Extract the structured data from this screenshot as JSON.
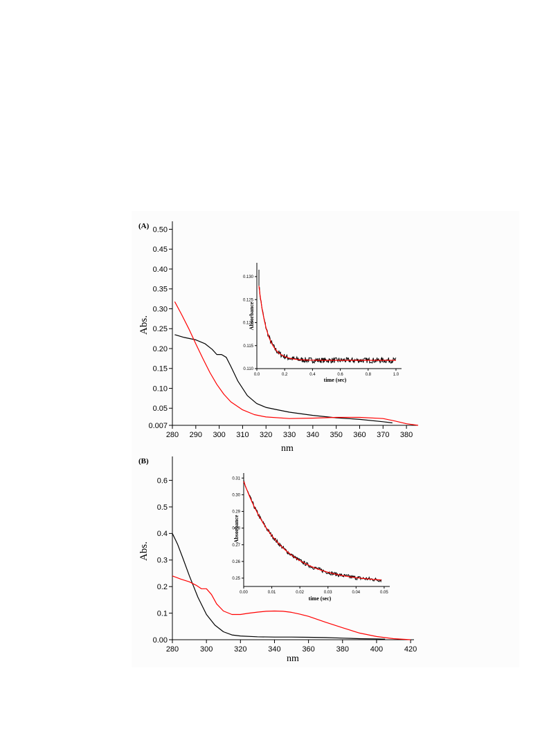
{
  "colors": {
    "black_series": "#000000",
    "red_series": "#ff0000",
    "panel_bg": "#fcfcfc",
    "axis": "#000000"
  },
  "chart_data": [
    {
      "id": "A-main",
      "panel_label": "(A)",
      "type": "line",
      "xlabel": "nm",
      "ylabel": "Abs.",
      "xlim": [
        280,
        385
      ],
      "ylim": [
        0.007,
        0.52
      ],
      "xticks": [
        280,
        290,
        300,
        310,
        320,
        330,
        340,
        350,
        360,
        370,
        380
      ],
      "yticks": [
        0.007,
        0.05,
        0.1,
        0.15,
        0.2,
        0.25,
        0.3,
        0.35,
        0.4,
        0.45,
        0.5
      ],
      "ytick_labels": [
        "0.007",
        "0.05",
        "0.10",
        "0.15",
        "0.20",
        "0.25",
        "0.30",
        "0.35",
        "0.40",
        "0.45",
        "0.50"
      ],
      "series": [
        {
          "color": "#000000",
          "x": [
            281,
            285,
            290,
            294,
            297,
            299,
            301,
            303,
            305,
            308,
            312,
            316,
            320,
            325,
            330,
            340,
            350,
            360,
            370,
            374
          ],
          "y": [
            0.235,
            0.228,
            0.222,
            0.212,
            0.198,
            0.185,
            0.185,
            0.178,
            0.155,
            0.118,
            0.082,
            0.062,
            0.052,
            0.046,
            0.04,
            0.032,
            0.026,
            0.022,
            0.016,
            0.013
          ]
        },
        {
          "color": "#ff0000",
          "x": [
            281,
            284,
            287,
            290,
            293,
            296,
            299,
            302,
            305,
            310,
            315,
            320,
            330,
            340,
            350,
            360,
            370,
            375,
            380,
            385
          ],
          "y": [
            0.318,
            0.285,
            0.25,
            0.212,
            0.175,
            0.14,
            0.11,
            0.085,
            0.066,
            0.046,
            0.034,
            0.028,
            0.024,
            0.025,
            0.027,
            0.027,
            0.024,
            0.018,
            0.011,
            0.007
          ]
        }
      ]
    },
    {
      "id": "A-inset",
      "type": "line",
      "xlabel": "time (sec)",
      "ylabel": "Absorbance",
      "xlim": [
        0,
        1.04
      ],
      "ylim": [
        0.11,
        0.133
      ],
      "xticks": [
        0.0,
        0.2,
        0.4,
        0.6,
        0.8,
        1.0
      ],
      "xtick_labels": [
        "0.0",
        "0.2",
        "0.4",
        "0.6",
        "0.8",
        "1.0"
      ],
      "yticks": [
        0.11,
        0.115,
        0.12,
        0.125,
        0.13
      ],
      "ytick_labels": [
        "0.110",
        "0.115",
        "0.120",
        "0.125",
        "0.130"
      ],
      "decay": {
        "x_start": 0.015,
        "x_end": 1.0,
        "y_start": 0.128,
        "y_plateau": 0.1118,
        "tau": 0.062,
        "noise": 0.0006
      },
      "series": [
        {
          "color": "#000000",
          "kind": "data"
        },
        {
          "color": "#ff0000",
          "kind": "fit"
        }
      ]
    },
    {
      "id": "B-main",
      "panel_label": "(B)",
      "type": "line",
      "xlabel": "nm",
      "ylabel": "Abs.",
      "xlim": [
        280,
        422
      ],
      "ylim": [
        0,
        0.69
      ],
      "xticks": [
        280,
        300,
        320,
        340,
        360,
        380,
        400,
        420
      ],
      "yticks": [
        0.0,
        0.1,
        0.2,
        0.3,
        0.4,
        0.5,
        0.6
      ],
      "ytick_labels": [
        "0.00",
        "0.1",
        "0.2",
        "0.3",
        "0.4",
        "0.5",
        "0.6"
      ],
      "series": [
        {
          "color": "#000000",
          "x": [
            280,
            283,
            286,
            290,
            295,
            300,
            305,
            310,
            315,
            320,
            330,
            340,
            350,
            360,
            370,
            380,
            390,
            400,
            405
          ],
          "y": [
            0.4,
            0.36,
            0.31,
            0.24,
            0.16,
            0.095,
            0.055,
            0.03,
            0.018,
            0.014,
            0.011,
            0.01,
            0.01,
            0.009,
            0.008,
            0.006,
            0.004,
            0.003,
            0.002
          ]
        },
        {
          "color": "#ff0000",
          "x": [
            280,
            285,
            290,
            294,
            297,
            300,
            303,
            306,
            310,
            315,
            320,
            325,
            330,
            335,
            340,
            345,
            350,
            355,
            360,
            370,
            380,
            390,
            400,
            410,
            420
          ],
          "y": [
            0.24,
            0.228,
            0.218,
            0.205,
            0.192,
            0.192,
            0.17,
            0.135,
            0.108,
            0.095,
            0.095,
            0.1,
            0.104,
            0.107,
            0.108,
            0.107,
            0.103,
            0.096,
            0.088,
            0.066,
            0.045,
            0.025,
            0.012,
            0.004,
            0.0
          ]
        }
      ]
    },
    {
      "id": "B-inset",
      "type": "line",
      "xlabel": "time (sec)",
      "ylabel": "Absorbance",
      "xlim": [
        0,
        0.052
      ],
      "ylim": [
        0.245,
        0.313
      ],
      "xticks": [
        0.0,
        0.01,
        0.02,
        0.03,
        0.04,
        0.05
      ],
      "xtick_labels": [
        "0.00",
        "0.01",
        "0.02",
        "0.03",
        "0.04",
        "0.05"
      ],
      "yticks": [
        0.25,
        0.26,
        0.27,
        0.28,
        0.29,
        0.3,
        0.31
      ],
      "ytick_labels": [
        "0.25",
        "0.26",
        "0.27",
        "0.28",
        "0.29",
        "0.30",
        "0.31"
      ],
      "decay": {
        "x_start": 0.0,
        "x_end": 0.049,
        "y_start": 0.308,
        "y_plateau": 0.2475,
        "tau": 0.013,
        "noise": 0.0012
      },
      "series": [
        {
          "color": "#000000",
          "kind": "data"
        },
        {
          "color": "#ff0000",
          "kind": "fit"
        }
      ]
    }
  ]
}
